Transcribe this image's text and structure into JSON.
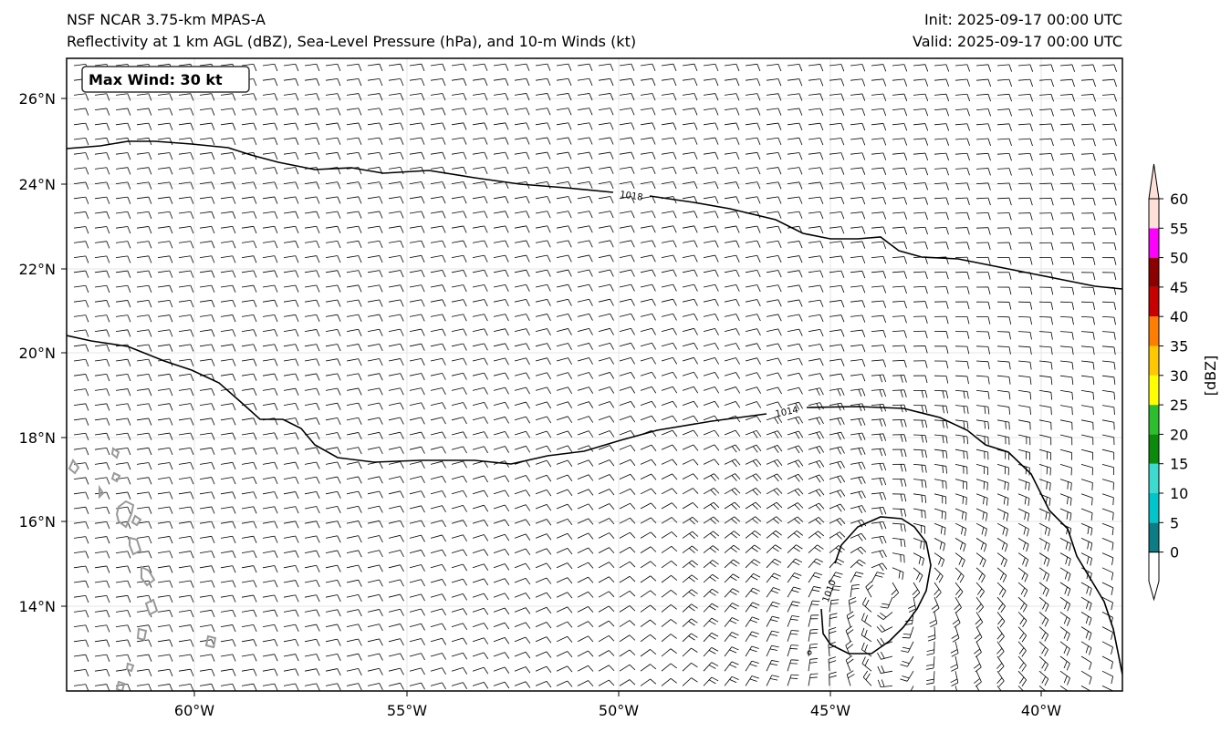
{
  "header": {
    "model": "NSF NCAR 3.75-km MPAS-A",
    "fields": "Reflectivity at 1 km AGL (dBZ), Sea-Level Pressure (hPa), and 10-m Winds (kt)",
    "init": "Init: 2025-09-17 00:00 UTC",
    "valid": "Valid: 2025-09-17 00:00 UTC"
  },
  "max_wind_label": "Max Wind: 30 kt",
  "map": {
    "lon_ticks": [
      "60°W",
      "55°W",
      "50°W",
      "45°W",
      "40°W"
    ],
    "lat_ticks": [
      "26°N",
      "24°N",
      "22°N",
      "20°N",
      "18°N",
      "16°N",
      "14°N"
    ]
  },
  "isobar_labels": [
    "1018",
    "1014",
    "1010"
  ],
  "colorbar": {
    "label": "[dBZ]",
    "ticks": [
      "0",
      "5",
      "10",
      "15",
      "20",
      "25",
      "30",
      "35",
      "40",
      "45",
      "50",
      "55",
      "60"
    ],
    "colors": [
      "#0c7d85",
      "#00c5ca",
      "#3ddad0",
      "#0b8a0b",
      "#2dbe2d",
      "#ffff00",
      "#ffc800",
      "#ff7d00",
      "#c80000",
      "#8c0000",
      "#ff00ff",
      "#ffe0d8"
    ]
  },
  "colors": {
    "isobar": "#000000",
    "coastline": "#999999",
    "grid": "#e6e6e6"
  }
}
